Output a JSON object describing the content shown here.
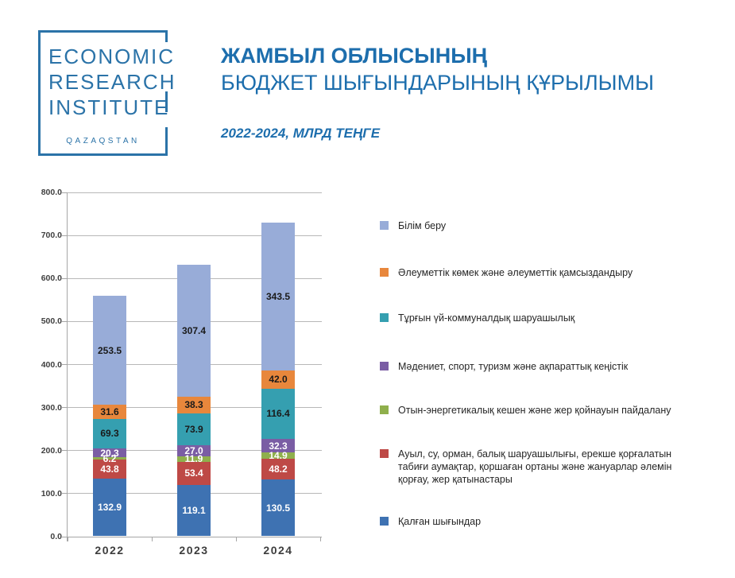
{
  "logo": {
    "line1": "ECONOMIC",
    "line2": "RESEARCH",
    "line3": "INSTITUTE",
    "country": "QAZAQSTAN"
  },
  "header": {
    "title_line1": "ЖАМБЫЛ ОБЛЫСЫНЫҢ",
    "title_line2": "БЮДЖЕТ ШЫҒЫНДАРЫНЫҢ ҚҰРЫЛЫМЫ",
    "subtitle": "2022-2024, МЛРД ТЕҢГЕ"
  },
  "colors": {
    "brand_blue": "#1D6EAD",
    "logo_blue": "#2B73A8",
    "axis_gray": "#A6A6A6",
    "grid_gray": "#B8B8B8",
    "dark_label": "#1A1A1A"
  },
  "chart_data": {
    "type": "bar",
    "stacked": true,
    "title": "ЖАМБЫЛ ОБЛЫСЫНЫҢ БЮДЖЕТ ШЫҒЫНДАРЫНЫҢ ҚҰРЫЛЫМЫ",
    "subtitle": "2022-2024, МЛРД ТЕҢГЕ",
    "categories": [
      "2022",
      "2023",
      "2024"
    ],
    "stack_order": "bottom-to-top",
    "series": [
      {
        "name": "Қалған шығындар",
        "color": "#3E72B2",
        "label_color": "#FFFFFF",
        "values": [
          132.9,
          119.1,
          130.5
        ]
      },
      {
        "name": "Ауыл, су, орман, балық шаруашылығы, ерекше қорғалатын табиғи аумақтар, қоршаған ортаны және жануарлар әлемін қорғау, жер қатынастары",
        "color": "#BE4946",
        "label_color": "#FFFFFF",
        "values": [
          43.8,
          53.4,
          48.2
        ]
      },
      {
        "name": "Отын-энергетикалық кешен және жер қойнауын пайдалану",
        "color": "#8FAF4C",
        "label_color": "#FFFFFF",
        "values": [
          6.2,
          11.9,
          14.9
        ]
      },
      {
        "name": "Мәдениет, спорт, туризм және ақпараттық кеңістік",
        "color": "#7A5DA4",
        "label_color": "#FFFFFF",
        "values": [
          20.3,
          27.0,
          32.3
        ]
      },
      {
        "name": "Тұрғын үй-коммуналдық шаруашылық",
        "color": "#359FB0",
        "label_color": "#1A1A1A",
        "values": [
          69.3,
          73.9,
          116.4
        ]
      },
      {
        "name": "Әлеуметтік көмек және әлеуметтік қамсыздандыру",
        "color": "#E8873C",
        "label_color": "#1A1A1A",
        "values": [
          31.6,
          38.3,
          42.0
        ]
      },
      {
        "name": "Білім беру",
        "color": "#98ACD8",
        "label_color": "#1A1A1A",
        "values": [
          253.5,
          307.4,
          343.5
        ]
      }
    ],
    "ylim": [
      0,
      800
    ],
    "y_tick_step": 100,
    "y_tick_format": "one-decimal",
    "grid": true,
    "legend_position": "right",
    "legend_order": "reverse-of-stack (top legend item = top bar segment)"
  }
}
